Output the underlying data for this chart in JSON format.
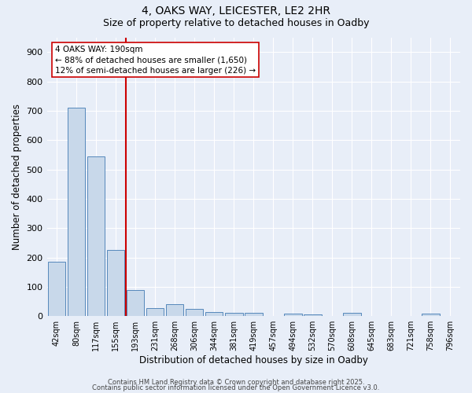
{
  "title1": "4, OAKS WAY, LEICESTER, LE2 2HR",
  "title2": "Size of property relative to detached houses in Oadby",
  "xlabel": "Distribution of detached houses by size in Oadby",
  "ylabel": "Number of detached properties",
  "categories": [
    "42sqm",
    "80sqm",
    "117sqm",
    "155sqm",
    "193sqm",
    "231sqm",
    "268sqm",
    "306sqm",
    "344sqm",
    "381sqm",
    "419sqm",
    "457sqm",
    "494sqm",
    "532sqm",
    "570sqm",
    "608sqm",
    "645sqm",
    "683sqm",
    "721sqm",
    "758sqm",
    "796sqm"
  ],
  "values": [
    185,
    710,
    545,
    225,
    88,
    27,
    40,
    25,
    14,
    10,
    10,
    0,
    8,
    5,
    0,
    10,
    0,
    0,
    0,
    8,
    0
  ],
  "bar_color": "#c8d8ea",
  "bar_edge_color": "#5588bb",
  "vline_index": 4,
  "vline_color": "#cc0000",
  "annotation_text": "4 OAKS WAY: 190sqm\n← 88% of detached houses are smaller (1,650)\n12% of semi-detached houses are larger (226) →",
  "annotation_box_facecolor": "#ffffff",
  "annotation_box_edgecolor": "#cc0000",
  "background_color": "#e8eef8",
  "grid_color": "#ffffff",
  "ylim": [
    0,
    950
  ],
  "yticks": [
    0,
    100,
    200,
    300,
    400,
    500,
    600,
    700,
    800,
    900
  ],
  "title1_fontsize": 10,
  "title2_fontsize": 9,
  "xlabel_fontsize": 8.5,
  "ylabel_fontsize": 8.5,
  "xtick_fontsize": 7,
  "ytick_fontsize": 8,
  "footer1": "Contains HM Land Registry data © Crown copyright and database right 2025.",
  "footer2": "Contains public sector information licensed under the Open Government Licence v3.0.",
  "footer_fontsize": 6
}
